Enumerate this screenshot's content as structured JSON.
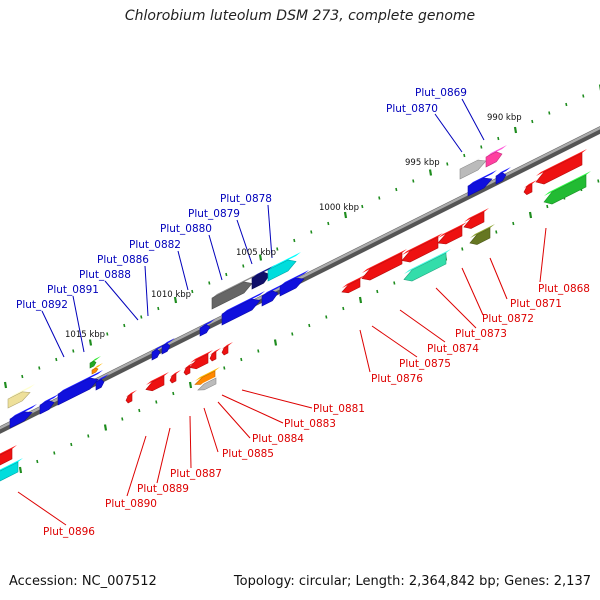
{
  "title": "Chlorobium luteolum DSM 273, complete genome",
  "footer": {
    "accession": "Accession: NC_007512",
    "stats": "Topology: circular; Length: 2,364,842 bp; Genes: 2,137"
  },
  "colors": {
    "forward_label": "#0000bb",
    "reverse_label": "#dd0000",
    "backbone": "#888888",
    "tick": "#1e8c1e"
  },
  "scale_labels": [
    "990 kbp",
    "995 kbp",
    "1000 kbp",
    "1005 kbp",
    "1010 kbp",
    "1015 kbp"
  ],
  "genes_forward": [
    "Plut_0869",
    "Plut_0870",
    "Plut_0878",
    "Plut_0879",
    "Plut_0880",
    "Plut_0882",
    "Plut_0886",
    "Plut_0888",
    "Plut_0891",
    "Plut_0892"
  ],
  "genes_reverse": [
    "Plut_0868",
    "Plut_0871",
    "Plut_0872",
    "Plut_0873",
    "Plut_0874",
    "Plut_0875",
    "Plut_0876",
    "Plut_0881",
    "Plut_0883",
    "Plut_0884",
    "Plut_0885",
    "Plut_0887",
    "Plut_0889",
    "Plut_0890",
    "Plut_0896"
  ]
}
